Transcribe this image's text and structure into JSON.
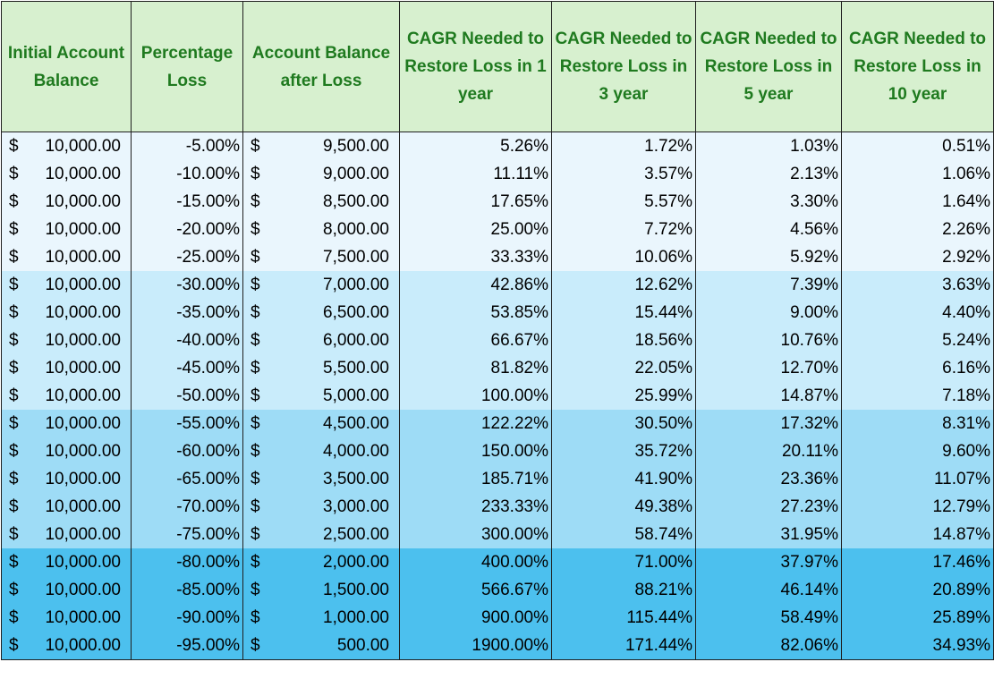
{
  "headers": [
    "Initial Account Balance",
    "Percentage Loss",
    "Account Balance after Loss",
    "CAGR Needed to Restore Loss in 1 year",
    "CAGR Needed to Restore Loss in 3 year",
    "CAGR Needed to Restore Loss in 5 year",
    "CAGR Needed to Restore Loss in 10 year"
  ],
  "currency_symbol": "$",
  "band_colors": [
    "#eaf6fd",
    "#c9ecfb",
    "#9edcf6",
    "#4cc0ee"
  ],
  "header_colors": {
    "background": "#d7f0cf",
    "text": "#1f7a1f"
  },
  "rows": [
    {
      "initial": "10,000.00",
      "loss": "-5.00%",
      "after": "9,500.00",
      "y1": "5.26%",
      "y3": "1.72%",
      "y5": "1.03%",
      "y10": "0.51%"
    },
    {
      "initial": "10,000.00",
      "loss": "-10.00%",
      "after": "9,000.00",
      "y1": "11.11%",
      "y3": "3.57%",
      "y5": "2.13%",
      "y10": "1.06%"
    },
    {
      "initial": "10,000.00",
      "loss": "-15.00%",
      "after": "8,500.00",
      "y1": "17.65%",
      "y3": "5.57%",
      "y5": "3.30%",
      "y10": "1.64%"
    },
    {
      "initial": "10,000.00",
      "loss": "-20.00%",
      "after": "8,000.00",
      "y1": "25.00%",
      "y3": "7.72%",
      "y5": "4.56%",
      "y10": "2.26%"
    },
    {
      "initial": "10,000.00",
      "loss": "-25.00%",
      "after": "7,500.00",
      "y1": "33.33%",
      "y3": "10.06%",
      "y5": "5.92%",
      "y10": "2.92%"
    },
    {
      "initial": "10,000.00",
      "loss": "-30.00%",
      "after": "7,000.00",
      "y1": "42.86%",
      "y3": "12.62%",
      "y5": "7.39%",
      "y10": "3.63%"
    },
    {
      "initial": "10,000.00",
      "loss": "-35.00%",
      "after": "6,500.00",
      "y1": "53.85%",
      "y3": "15.44%",
      "y5": "9.00%",
      "y10": "4.40%"
    },
    {
      "initial": "10,000.00",
      "loss": "-40.00%",
      "after": "6,000.00",
      "y1": "66.67%",
      "y3": "18.56%",
      "y5": "10.76%",
      "y10": "5.24%"
    },
    {
      "initial": "10,000.00",
      "loss": "-45.00%",
      "after": "5,500.00",
      "y1": "81.82%",
      "y3": "22.05%",
      "y5": "12.70%",
      "y10": "6.16%"
    },
    {
      "initial": "10,000.00",
      "loss": "-50.00%",
      "after": "5,000.00",
      "y1": "100.00%",
      "y3": "25.99%",
      "y5": "14.87%",
      "y10": "7.18%"
    },
    {
      "initial": "10,000.00",
      "loss": "-55.00%",
      "after": "4,500.00",
      "y1": "122.22%",
      "y3": "30.50%",
      "y5": "17.32%",
      "y10": "8.31%"
    },
    {
      "initial": "10,000.00",
      "loss": "-60.00%",
      "after": "4,000.00",
      "y1": "150.00%",
      "y3": "35.72%",
      "y5": "20.11%",
      "y10": "9.60%"
    },
    {
      "initial": "10,000.00",
      "loss": "-65.00%",
      "after": "3,500.00",
      "y1": "185.71%",
      "y3": "41.90%",
      "y5": "23.36%",
      "y10": "11.07%"
    },
    {
      "initial": "10,000.00",
      "loss": "-70.00%",
      "after": "3,000.00",
      "y1": "233.33%",
      "y3": "49.38%",
      "y5": "27.23%",
      "y10": "12.79%"
    },
    {
      "initial": "10,000.00",
      "loss": "-75.00%",
      "after": "2,500.00",
      "y1": "300.00%",
      "y3": "58.74%",
      "y5": "31.95%",
      "y10": "14.87%"
    },
    {
      "initial": "10,000.00",
      "loss": "-80.00%",
      "after": "2,000.00",
      "y1": "400.00%",
      "y3": "71.00%",
      "y5": "37.97%",
      "y10": "17.46%"
    },
    {
      "initial": "10,000.00",
      "loss": "-85.00%",
      "after": "1,500.00",
      "y1": "566.67%",
      "y3": "88.21%",
      "y5": "46.14%",
      "y10": "20.89%"
    },
    {
      "initial": "10,000.00",
      "loss": "-90.00%",
      "after": "1,000.00",
      "y1": "900.00%",
      "y3": "115.44%",
      "y5": "58.49%",
      "y10": "25.89%"
    },
    {
      "initial": "10,000.00",
      "loss": "-95.00%",
      "after": "500.00",
      "y1": "1900.00%",
      "y3": "171.44%",
      "y5": "82.06%",
      "y10": "34.93%"
    }
  ]
}
